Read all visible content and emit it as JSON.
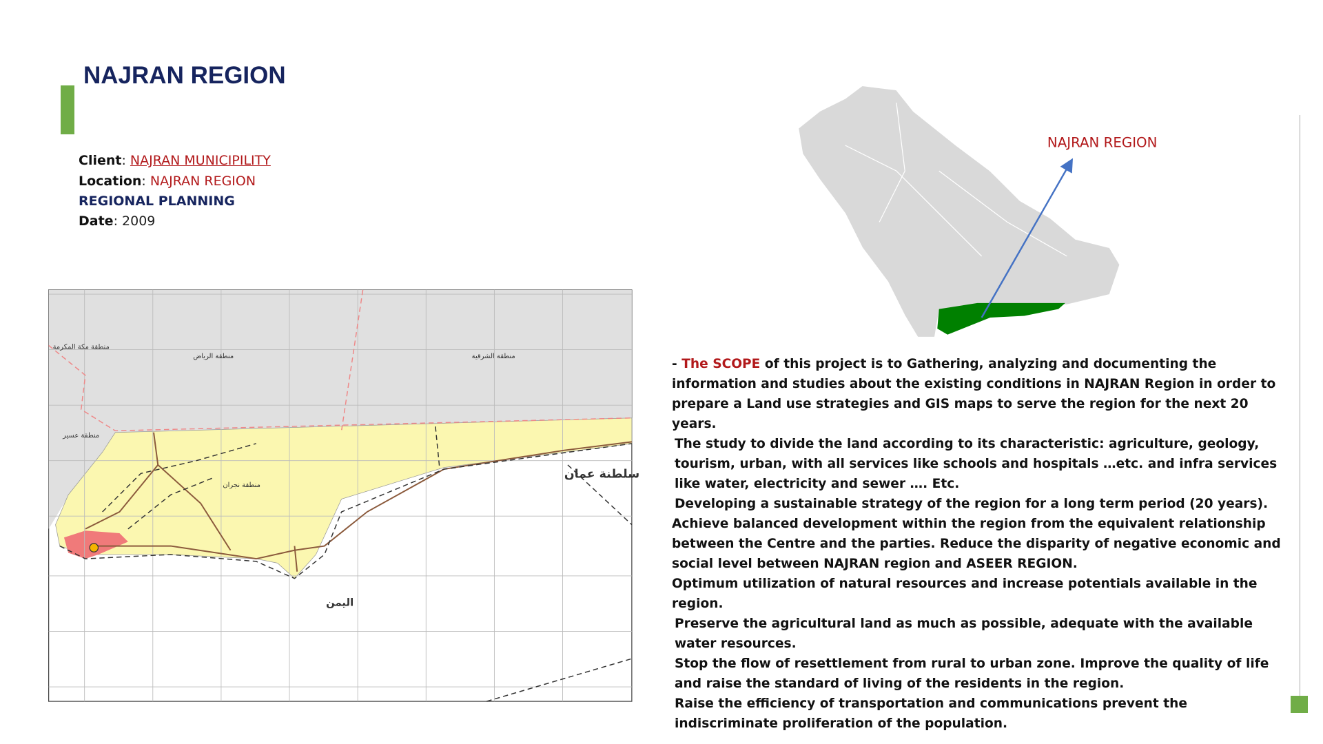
{
  "header": {
    "title": "NAJRAN REGION"
  },
  "info": {
    "client_label": "Client",
    "client": "NAJRAN MUNICIPILITY",
    "location_label": "Location",
    "location": "NAJRAN REGION",
    "category": "REGIONAL PLANNING",
    "date_label": "Date",
    "date": "2009"
  },
  "key_map": {
    "label": "NAJRAN REGION"
  },
  "regional_map": {
    "labels": [
      "منطقة مكة المكرمة",
      "منطقة الرياض",
      "منطقة الشرقية",
      "منطقة عسير",
      "منطقة نجران",
      "سلطنة عمان",
      "اليمن"
    ]
  },
  "scope": {
    "prefix": "-",
    "highlight": "The SCOPE",
    "intro": "of this project is to Gathering, analyzing and documenting the information and studies about the existing conditions in NAJRAN Region in order to prepare a Land use strategies and GIS maps to serve the region for the next 20 years.",
    "paragraphs": [
      "The study to divide the land according to its characteristic: agriculture, geology, tourism, urban, with all services like schools and hospitals …etc. and infra services like water, electricity and sewer …. Etc.",
      "Developing a sustainable strategy of the region for a long term period (20 years).",
      "Achieve balanced development within the region from the equivalent relationship between the Centre and the parties. Reduce the disparity of negative economic and social level between NAJRAN region and ASEER REGION.",
      "Optimum utilization of natural resources and increase potentials available in the region.",
      "Preserve the agricultural land as much as possible, adequate with the available water resources.",
      "Stop the flow of resettlement from rural to urban zone. Improve the quality of life and raise the standard of living of the residents in the region.",
      "Raise the efficiency of transportation and communications prevent the indiscriminate proliferation of the population."
    ]
  }
}
